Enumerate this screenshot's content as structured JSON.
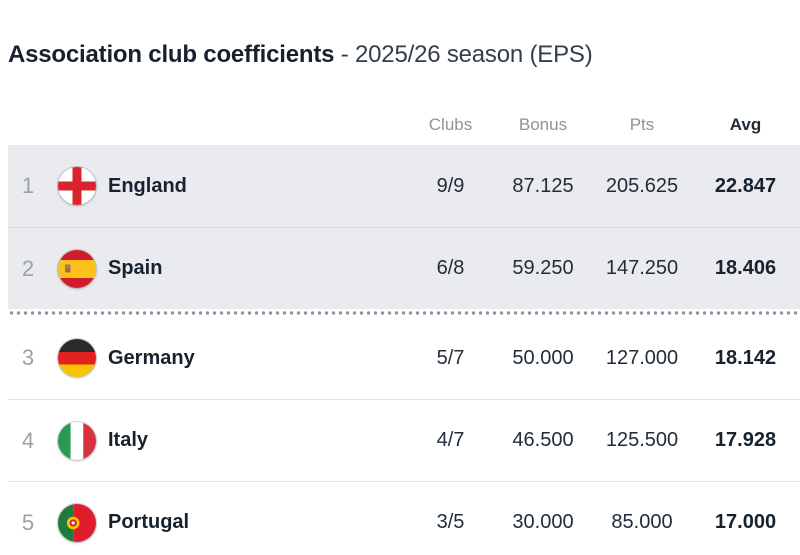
{
  "title": {
    "main": "Association club coefficients",
    "suffix": " - 2025/26 season (EPS)"
  },
  "table": {
    "headers": {
      "clubs": "Clubs",
      "bonus": "Bonus",
      "pts": "Pts",
      "avg": "Avg"
    },
    "rows": [
      {
        "rank": "1",
        "country": "England",
        "flag": "england",
        "clubs": "9/9",
        "bonus": "87.125",
        "pts": "205.625",
        "avg": "22.847",
        "highlighted": true
      },
      {
        "rank": "2",
        "country": "Spain",
        "flag": "spain",
        "clubs": "6/8",
        "bonus": "59.250",
        "pts": "147.250",
        "avg": "18.406",
        "highlighted": true
      },
      {
        "rank": "3",
        "country": "Germany",
        "flag": "germany",
        "clubs": "5/7",
        "bonus": "50.000",
        "pts": "127.000",
        "avg": "18.142",
        "highlighted": false
      },
      {
        "rank": "4",
        "country": "Italy",
        "flag": "italy",
        "clubs": "4/7",
        "bonus": "46.500",
        "pts": "125.500",
        "avg": "17.928",
        "highlighted": false
      },
      {
        "rank": "5",
        "country": "Portugal",
        "flag": "portugal",
        "clubs": "3/5",
        "bonus": "30.000",
        "pts": "85.000",
        "avg": "17.000",
        "highlighted": false
      }
    ],
    "cutoff_line_after_rank": "2"
  },
  "colors": {
    "highlight_row_bg": "#e9ebee",
    "text_dark": "#17222e",
    "text_muted": "#8d939c",
    "dotted_line": "#8b939b"
  }
}
